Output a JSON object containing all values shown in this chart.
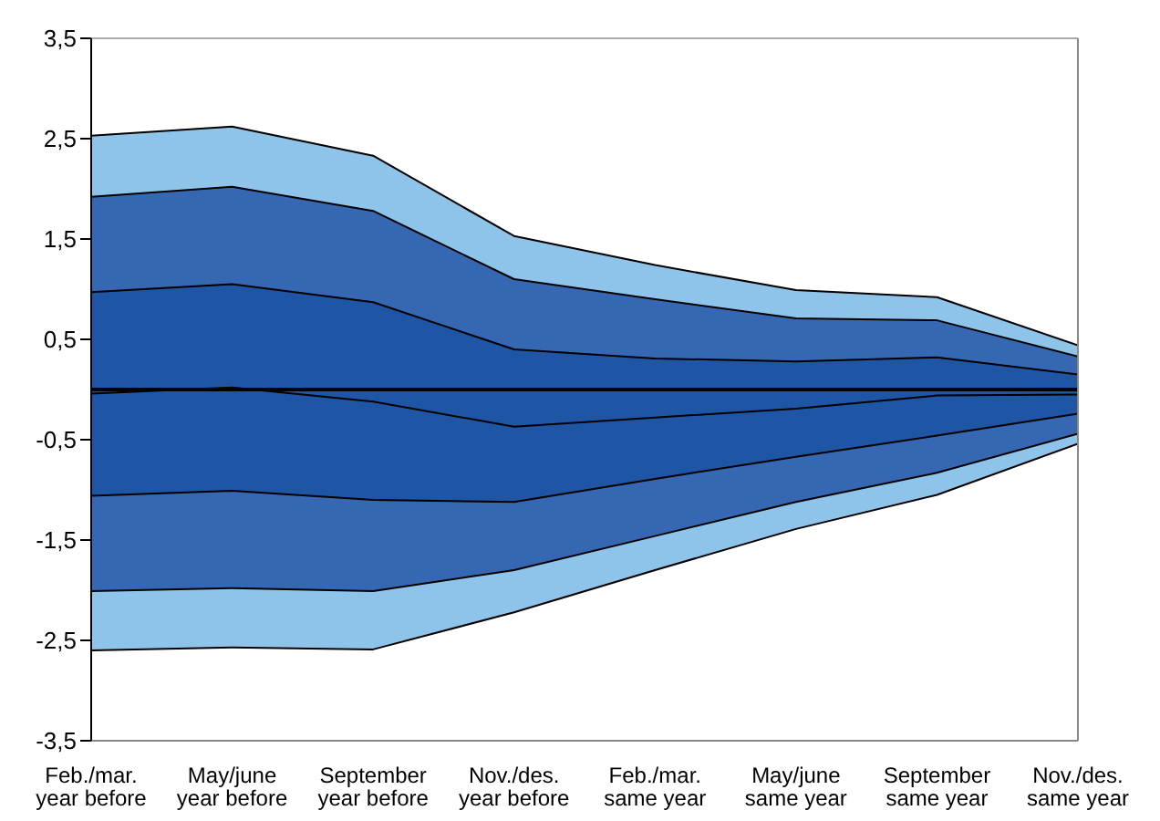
{
  "chart_data": {
    "type": "area",
    "categories": [
      "Feb./mar.\nyear before",
      "May/june\nyear before",
      "September\nyear before",
      "Nov./des.\nyear before",
      "Feb./mar.\nsame year",
      "May/june\nsame year",
      "September\nsame year",
      "Nov./des.\nsame year"
    ],
    "series": [
      {
        "color": "#8ec3ea",
        "values": [
          2.53,
          2.62,
          2.33,
          1.53,
          1.24,
          0.99,
          0.92,
          0.44
        ]
      },
      {
        "color": "#3567b3",
        "values": [
          1.92,
          2.02,
          1.78,
          1.1,
          0.9,
          0.71,
          0.69,
          0.33
        ]
      },
      {
        "color": "#1e55a5",
        "values": [
          0.97,
          1.05,
          0.87,
          0.4,
          0.31,
          0.28,
          0.32,
          0.15
        ]
      },
      {
        "color": "#8ec3ea",
        "values": [
          -2.6,
          -2.57,
          -2.59,
          -2.22,
          -1.8,
          -1.39,
          -1.05,
          -0.54
        ]
      },
      {
        "color": "#3567b3",
        "values": [
          -2.01,
          -1.98,
          -2.01,
          -1.8,
          -1.46,
          -1.12,
          -0.83,
          -0.44
        ]
      },
      {
        "color": "#1e55a5",
        "values": [
          -1.06,
          -1.01,
          -1.1,
          -1.12,
          -0.89,
          -0.67,
          -0.46,
          -0.24
        ]
      },
      {
        "type": "line",
        "color": "#000000",
        "values": [
          -0.04,
          0.02,
          -0.12,
          -0.37,
          -0.28,
          -0.19,
          -0.06,
          -0.05
        ]
      }
    ],
    "ylim": [
      -3.5,
      3.5
    ],
    "yticks": [
      {
        "value": -3.5,
        "label": "-3,5"
      },
      {
        "value": -2.5,
        "label": "-2,5"
      },
      {
        "value": -1.5,
        "label": "-1,5"
      },
      {
        "value": -0.5,
        "label": "-0,5"
      },
      {
        "value": 0.5,
        "label": "0,5"
      },
      {
        "value": 1.5,
        "label": "1,5"
      },
      {
        "value": 2.5,
        "label": "2,5"
      },
      {
        "value": 3.5,
        "label": "3,5"
      }
    ],
    "ref_lines": [
      {
        "axis": "y",
        "value": 0,
        "color": "#000000"
      }
    ],
    "grid": false,
    "legend": false
  }
}
